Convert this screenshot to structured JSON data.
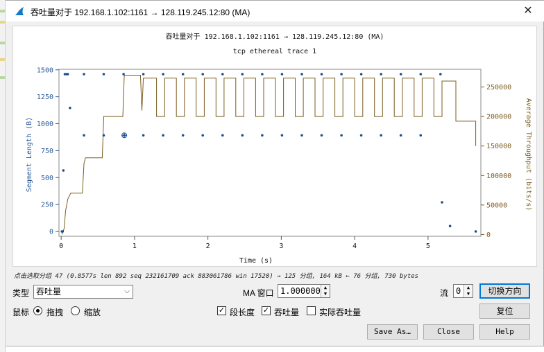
{
  "window": {
    "title": "吞吐量对于 192.168.1.102:1161 → 128.119.245.12:80 (MA)",
    "close_glyph": "✕"
  },
  "chart_data": {
    "type": "scatter+step",
    "title": "吞吐量对于 192.168.1.102:1161 → 128.119.245.12:80 (MA)",
    "subtitle": "tcp ethereal trace 1",
    "xlabel": "Time (s)",
    "ylabel_left": "Segment Length (B)",
    "ylabel_right": "Average Throughput (bits/s)",
    "x_ticks": [
      "0",
      "1",
      "2",
      "3",
      "4",
      "5"
    ],
    "x_tick_values": [
      0,
      1,
      2,
      3,
      4,
      5
    ],
    "y_left_ticks": [
      "0",
      "250",
      "500",
      "750",
      "1000",
      "1250",
      "1500"
    ],
    "y_left_tick_values": [
      0,
      250,
      500,
      750,
      1000,
      1250,
      1500
    ],
    "y_right_ticks": [
      "0",
      "50000",
      "100000",
      "150000",
      "200000",
      "250000"
    ],
    "y_right_tick_values": [
      0,
      50000,
      100000,
      150000,
      200000,
      250000
    ],
    "xlim": [
      -0.03,
      5.72
    ],
    "ylim_left": [
      -45,
      1505
    ],
    "ylim_right": [
      -3000,
      280000
    ],
    "segment_length_series": {
      "name": "Segment Length",
      "color": "#1f4e8c",
      "points": [
        [
          0.01,
          0
        ],
        [
          0.02,
          0
        ],
        [
          0.03,
          566
        ],
        [
          0.05,
          1460
        ],
        [
          0.07,
          1460
        ],
        [
          0.09,
          1460
        ],
        [
          0.12,
          1146
        ],
        [
          0.31,
          1460
        ],
        [
          0.31,
          892
        ],
        [
          0.58,
          1460
        ],
        [
          0.58,
          892
        ],
        [
          0.85,
          1460
        ],
        [
          0.86,
          892
        ],
        [
          1.12,
          1460
        ],
        [
          1.12,
          892
        ],
        [
          1.39,
          1460
        ],
        [
          1.39,
          892
        ],
        [
          1.66,
          1460
        ],
        [
          1.66,
          892
        ],
        [
          1.93,
          1460
        ],
        [
          1.93,
          892
        ],
        [
          2.2,
          1460
        ],
        [
          2.2,
          892
        ],
        [
          2.47,
          1460
        ],
        [
          2.47,
          892
        ],
        [
          2.74,
          1460
        ],
        [
          2.74,
          892
        ],
        [
          3.01,
          1460
        ],
        [
          3.01,
          892
        ],
        [
          3.28,
          1460
        ],
        [
          3.28,
          892
        ],
        [
          3.55,
          1460
        ],
        [
          3.55,
          892
        ],
        [
          3.82,
          1460
        ],
        [
          3.82,
          892
        ],
        [
          4.09,
          1460
        ],
        [
          4.09,
          892
        ],
        [
          4.36,
          1460
        ],
        [
          4.36,
          892
        ],
        [
          4.63,
          1460
        ],
        [
          4.63,
          892
        ],
        [
          4.9,
          1460
        ],
        [
          4.9,
          892
        ],
        [
          5.17,
          1460
        ],
        [
          5.19,
          270
        ],
        [
          5.3,
          50
        ],
        [
          5.65,
          0
        ]
      ],
      "selected_point": [
        0.86,
        892
      ]
    },
    "throughput_series": {
      "name": "Average Throughput",
      "color": "#7a5c1e",
      "points": [
        [
          0.01,
          0
        ],
        [
          0.04,
          10000
        ],
        [
          0.06,
          40000
        ],
        [
          0.09,
          60000
        ],
        [
          0.13,
          70000
        ],
        [
          0.29,
          70000
        ],
        [
          0.31,
          120000
        ],
        [
          0.33,
          130000
        ],
        [
          0.56,
          130000
        ],
        [
          0.58,
          200000
        ],
        [
          0.84,
          200000
        ],
        [
          0.86,
          270000
        ],
        [
          1.08,
          270000
        ],
        [
          1.1,
          210000
        ],
        [
          1.12,
          265000
        ],
        [
          1.3,
          265000
        ],
        [
          1.3,
          200000
        ],
        [
          1.41,
          200000
        ],
        [
          1.41,
          265000
        ],
        [
          1.57,
          265000
        ],
        [
          1.57,
          200000
        ],
        [
          1.68,
          200000
        ],
        [
          1.68,
          265000
        ],
        [
          1.84,
          265000
        ],
        [
          1.84,
          200000
        ],
        [
          1.95,
          200000
        ],
        [
          1.95,
          265000
        ],
        [
          2.11,
          265000
        ],
        [
          2.11,
          200000
        ],
        [
          2.22,
          200000
        ],
        [
          2.22,
          265000
        ],
        [
          2.38,
          265000
        ],
        [
          2.38,
          200000
        ],
        [
          2.49,
          200000
        ],
        [
          2.49,
          265000
        ],
        [
          2.65,
          265000
        ],
        [
          2.65,
          200000
        ],
        [
          2.76,
          200000
        ],
        [
          2.76,
          265000
        ],
        [
          2.92,
          265000
        ],
        [
          2.92,
          200000
        ],
        [
          3.03,
          200000
        ],
        [
          3.03,
          265000
        ],
        [
          3.19,
          265000
        ],
        [
          3.19,
          200000
        ],
        [
          3.3,
          200000
        ],
        [
          3.3,
          265000
        ],
        [
          3.46,
          265000
        ],
        [
          3.46,
          200000
        ],
        [
          3.57,
          200000
        ],
        [
          3.57,
          265000
        ],
        [
          3.73,
          265000
        ],
        [
          3.73,
          200000
        ],
        [
          3.84,
          200000
        ],
        [
          3.84,
          265000
        ],
        [
          4.0,
          265000
        ],
        [
          4.0,
          200000
        ],
        [
          4.11,
          200000
        ],
        [
          4.11,
          265000
        ],
        [
          4.27,
          265000
        ],
        [
          4.27,
          200000
        ],
        [
          4.38,
          200000
        ],
        [
          4.38,
          265000
        ],
        [
          4.54,
          265000
        ],
        [
          4.54,
          200000
        ],
        [
          4.65,
          200000
        ],
        [
          4.65,
          265000
        ],
        [
          4.81,
          265000
        ],
        [
          4.81,
          200000
        ],
        [
          4.92,
          200000
        ],
        [
          4.92,
          265000
        ],
        [
          5.08,
          265000
        ],
        [
          5.08,
          200000
        ],
        [
          5.19,
          200000
        ],
        [
          5.19,
          260000
        ],
        [
          5.38,
          260000
        ],
        [
          5.38,
          192000
        ],
        [
          5.65,
          192000
        ],
        [
          5.65,
          150000
        ]
      ]
    },
    "grid": false,
    "legend": "none"
  },
  "status_text": "点击选取分组 47 (0.8577s len 892 seq 232161709 ack 883061786 win 17520) → 125 分组, 164 kB ← 76 分组, 730 bytes",
  "controls": {
    "type_label": "类型",
    "type_value": "吞吐量",
    "ma_label": "MA 窗口",
    "ma_value": "1.000000",
    "stream_label": "流",
    "stream_value": "0",
    "switch_direction": "切换方向",
    "mouse_label": "鼠标",
    "drag_label": "拖拽",
    "zoom_label": "缩放",
    "segment_length_label": "段长度",
    "throughput_label": "吞吐量",
    "goodput_label": "实际吞吐量",
    "reset": "复位",
    "save_as": "Save As…",
    "close": "Close",
    "help": "Help"
  }
}
